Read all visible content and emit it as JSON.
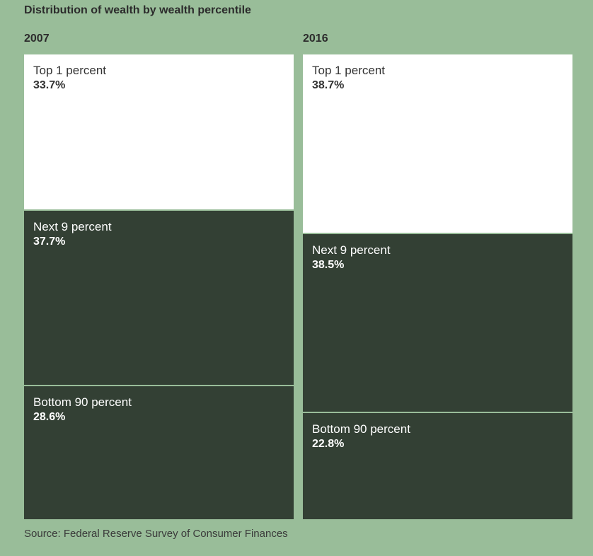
{
  "title": "Distribution of wealth by wealth percentile",
  "source": "Source: Federal Reserve Survey of Consumer Finances",
  "colors": {
    "background": "#99bd99",
    "top": "#ffffff",
    "next": "#334034",
    "bottom": "#334034",
    "divider": "#99bd99"
  },
  "chart_data": [
    {
      "type": "treemap",
      "label": "2007",
      "segments": [
        {
          "name": "Top 1 percent",
          "value": 33.7,
          "value_label": "33.7%"
        },
        {
          "name": "Next 9 percent",
          "value": 37.7,
          "value_label": "37.7%"
        },
        {
          "name": "Bottom 90 percent",
          "value": 28.6,
          "value_label": "28.6%"
        }
      ]
    },
    {
      "type": "treemap",
      "label": "2016",
      "segments": [
        {
          "name": "Top 1 percent",
          "value": 38.7,
          "value_label": "38.7%"
        },
        {
          "name": "Next 9 percent",
          "value": 38.5,
          "value_label": "38.5%"
        },
        {
          "name": "Bottom 90 percent",
          "value": 22.8,
          "value_label": "22.8%"
        }
      ]
    }
  ]
}
